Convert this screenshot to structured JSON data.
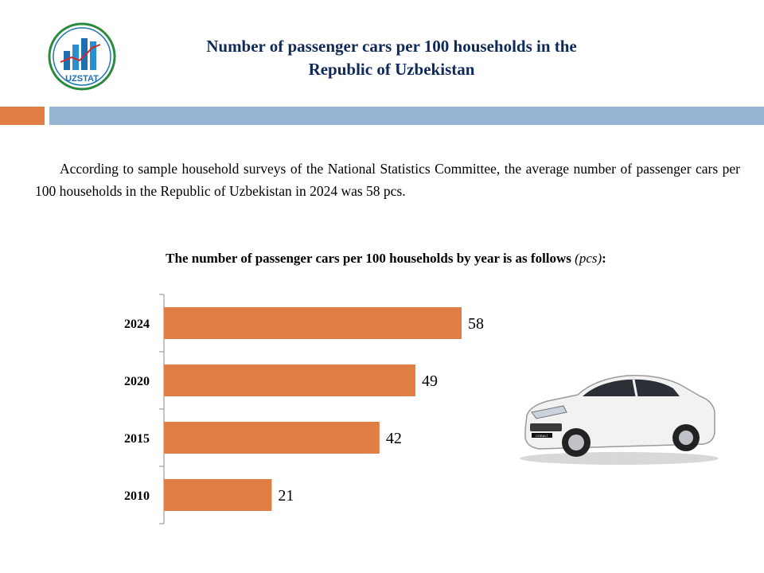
{
  "logo": {
    "text": "UZSTAT"
  },
  "header": {
    "title_line1": "Number of passenger cars per 100 households in the",
    "title_line2": "Republic of Uzbekistan"
  },
  "intro": {
    "text": "According to sample household surveys of the National Statistics Committee, the average number of passenger  cars per 100 households in the Republic of Uzbekistan  in 2024 was 58 pcs."
  },
  "colors": {
    "bar": "#e07e45",
    "accent_blue": "#94b6d2",
    "title": "#0f2a5a"
  },
  "chart_data": {
    "type": "bar",
    "orientation": "horizontal",
    "title": "The number of passenger cars per 100 households by year is as follows",
    "title_unit": "(pcs)",
    "title_suffix": ":",
    "categories": [
      "2024",
      "2020",
      "2015",
      "2010"
    ],
    "values": [
      58,
      49,
      42,
      21
    ],
    "xlim": [
      0,
      60
    ],
    "xlabel": "",
    "ylabel": "",
    "grid": false,
    "legend": "none"
  },
  "car_model_badge": "COBALT"
}
